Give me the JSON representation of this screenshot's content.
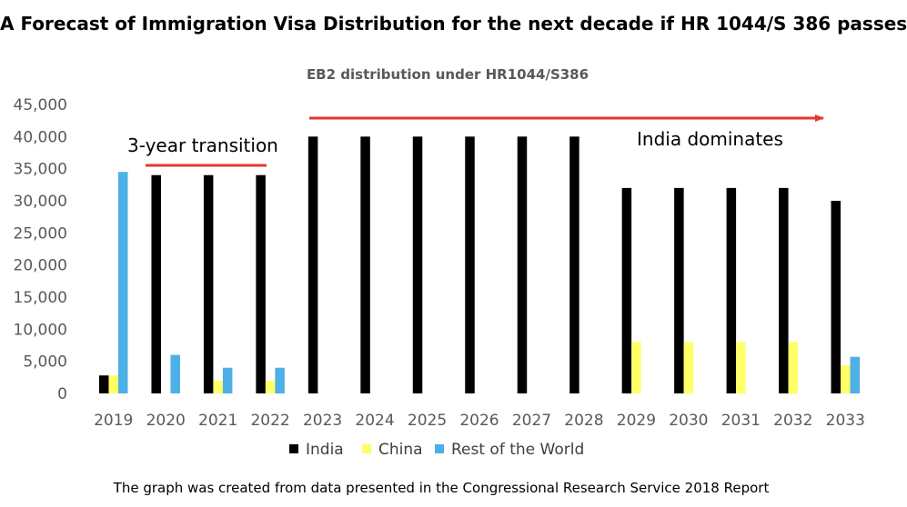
{
  "header": {
    "title": "A Forecast of Immigration Visa Distribution for the next decade if HR 1044/S 386 passes"
  },
  "footer": {
    "note": "The graph was created from data presented in the Congressional Research Service 2018 Report"
  },
  "chart_data": {
    "type": "bar",
    "title": "EB2 distribution under HR1044/S386",
    "xlabel": "",
    "ylabel": "",
    "ylim": [
      0,
      45000
    ],
    "yticks": [
      "0",
      "5,000",
      "10,000",
      "15,000",
      "20,000",
      "25,000",
      "30,000",
      "35,000",
      "40,000",
      "45,000"
    ],
    "grid": false,
    "legend_position": "bottom",
    "categories": [
      "2019",
      "2020",
      "2021",
      "2022",
      "2023",
      "2024",
      "2025",
      "2026",
      "2027",
      "2028",
      "2029",
      "2030",
      "2031",
      "2032",
      "2033"
    ],
    "series": [
      {
        "name": "India",
        "color": "#000000",
        "values": [
          2800,
          34000,
          34000,
          34000,
          40000,
          40000,
          40000,
          40000,
          40000,
          40000,
          32000,
          32000,
          32000,
          32000,
          30000
        ]
      },
      {
        "name": "China",
        "color": "#ffff66",
        "values": [
          2800,
          0,
          2000,
          2000,
          0,
          0,
          0,
          0,
          0,
          0,
          8000,
          8000,
          8000,
          8000,
          4400
        ]
      },
      {
        "name": "Rest of the World",
        "color": "#4db0e6",
        "values": [
          34500,
          6000,
          4000,
          4000,
          0,
          0,
          0,
          0,
          0,
          0,
          0,
          0,
          0,
          0,
          5700
        ]
      }
    ],
    "annotations": [
      {
        "text": "3-year transition",
        "color": "#e8372c"
      },
      {
        "text": "India dominates",
        "color": "#e8372c"
      }
    ]
  }
}
